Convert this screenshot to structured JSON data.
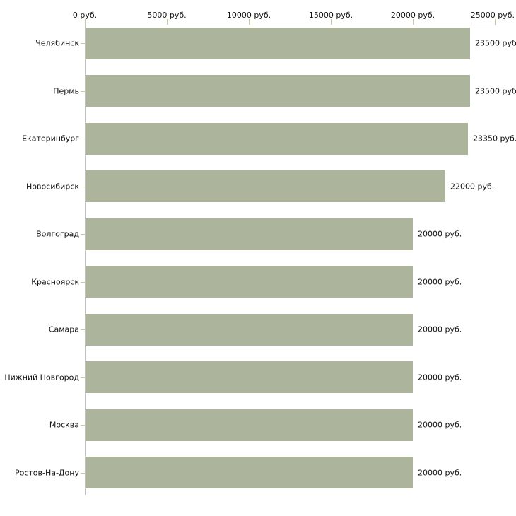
{
  "chart_data": {
    "type": "bar",
    "orientation": "horizontal",
    "title": "",
    "xlabel": "",
    "ylabel": "",
    "grid": false,
    "legend": "none",
    "categories": [
      "Челябинск",
      "Пермь",
      "Екатеринбург",
      "Новосибирск",
      "Волгоград",
      "Красноярск",
      "Самара",
      "Нижний Новгород",
      "Москва",
      "Ростов-На-Дону"
    ],
    "values": [
      23500,
      23500,
      23350,
      22000,
      20000,
      20000,
      20000,
      20000,
      20000,
      20000
    ],
    "value_labels": [
      "23500 руб.",
      "23500 руб.",
      "23350 руб.",
      "22000 руб.",
      "20000 руб.",
      "20000 руб.",
      "20000 руб.",
      "20000 руб.",
      "20000 руб.",
      "20000 руб."
    ],
    "axis": {
      "position": "top",
      "min": 0,
      "max": 25000,
      "tick_values": [
        0,
        5000,
        10000,
        15000,
        20000,
        25000
      ],
      "tick_labels": [
        "0 руб.",
        "5000 руб.",
        "10000 руб.",
        "15000 руб.",
        "20000 руб.",
        "25000 руб."
      ]
    },
    "colors": {
      "bar": "#adb49c",
      "axis_line": "#c0c0c0",
      "tick_mark": "#c8c8a2",
      "text": "#111111",
      "background": "#ffffff"
    }
  }
}
